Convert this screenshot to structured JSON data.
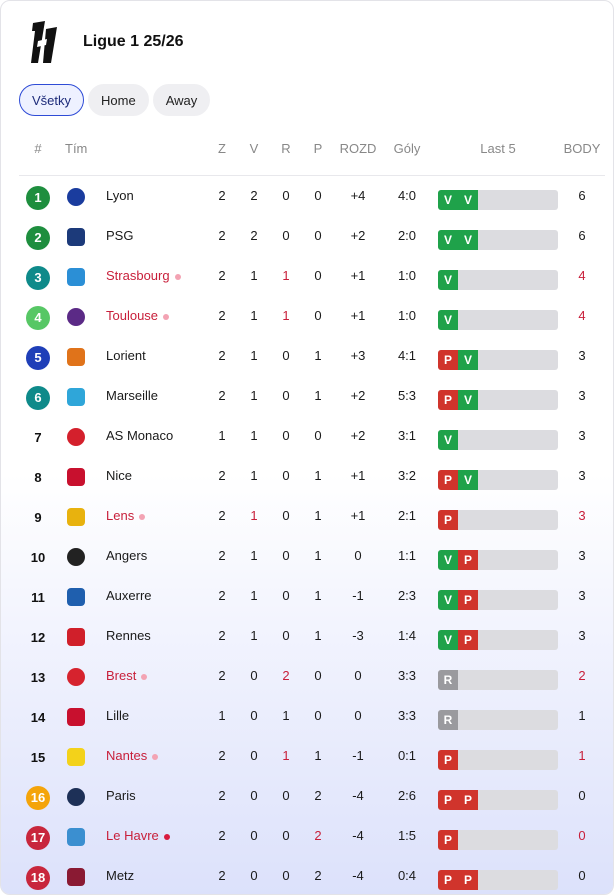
{
  "title": "Ligue 1 25/26",
  "filters": [
    {
      "label": "Všetky",
      "active": true
    },
    {
      "label": "Home",
      "active": false
    },
    {
      "label": "Away",
      "active": false
    }
  ],
  "columns": {
    "rank": "#",
    "team": "Tím",
    "z": "Z",
    "v": "V",
    "r": "R",
    "p": "P",
    "rozd": "ROZD",
    "goly": "Góly",
    "last5": "Last 5",
    "body": "BODY"
  },
  "colors": {
    "ucl": "#1e8e3e",
    "uel": "#0e8a8a",
    "conf": "#57c765",
    "ucl_playoff": "#1f3fb8",
    "playoff": "#f4a40a",
    "releg": "#c8263c",
    "win": "#1fa24a",
    "loss": "#d0342c",
    "draw": "#9a9a9e"
  },
  "rows": [
    {
      "rank": "1",
      "zone": "ucl",
      "team": "Lyon",
      "crest": "lyon-crest",
      "crest_color": "#1a3c9e",
      "note": "",
      "z": "2",
      "v": "2",
      "r": "0",
      "p": "0",
      "rozd": "+4",
      "goly": "4:0",
      "form": [
        "V",
        "V"
      ],
      "body": "6",
      "hl": ""
    },
    {
      "rank": "2",
      "zone": "ucl",
      "team": "PSG",
      "crest": "psg-crest",
      "crest_color": "#1c3a7a",
      "note": "",
      "z": "2",
      "v": "2",
      "r": "0",
      "p": "0",
      "rozd": "+2",
      "goly": "2:0",
      "form": [
        "V",
        "V"
      ],
      "body": "6",
      "hl": ""
    },
    {
      "rank": "3",
      "zone": "conf",
      "team": "Strasbourg",
      "crest": "strasbourg-crest",
      "crest_color": "#2b8fd6",
      "note": "light",
      "z": "2",
      "v": "1",
      "r": "1",
      "p": "0",
      "rozd": "+1",
      "goly": "1:0",
      "form": [
        "V"
      ],
      "body": "4",
      "hl": "r"
    },
    {
      "rank": "4",
      "zone": "conf2",
      "team": "Toulouse",
      "crest": "toulouse-crest",
      "crest_color": "#5b2a86",
      "note": "light",
      "z": "2",
      "v": "1",
      "r": "1",
      "p": "0",
      "rozd": "+1",
      "goly": "1:0",
      "form": [
        "V"
      ],
      "body": "4",
      "hl": "r"
    },
    {
      "rank": "5",
      "zone": "ucl_playoff",
      "team": "Lorient",
      "crest": "lorient-crest",
      "crest_color": "#e0731a",
      "note": "",
      "z": "2",
      "v": "1",
      "r": "0",
      "p": "1",
      "rozd": "+3",
      "goly": "4:1",
      "form": [
        "P",
        "V"
      ],
      "body": "3",
      "hl": ""
    },
    {
      "rank": "6",
      "zone": "uel",
      "team": "Marseille",
      "crest": "marseille-crest",
      "crest_color": "#2fa6d9",
      "note": "",
      "z": "2",
      "v": "1",
      "r": "0",
      "p": "1",
      "rozd": "+2",
      "goly": "5:3",
      "form": [
        "P",
        "V"
      ],
      "body": "3",
      "hl": ""
    },
    {
      "rank": "7",
      "zone": "",
      "team": "AS Monaco",
      "crest": "monaco-crest",
      "crest_color": "#d4202c",
      "note": "",
      "z": "1",
      "v": "1",
      "r": "0",
      "p": "0",
      "rozd": "+2",
      "goly": "3:1",
      "form": [
        "V"
      ],
      "body": "3",
      "hl": ""
    },
    {
      "rank": "8",
      "zone": "",
      "team": "Nice",
      "crest": "nice-crest",
      "crest_color": "#c8102e",
      "note": "",
      "z": "2",
      "v": "1",
      "r": "0",
      "p": "1",
      "rozd": "+1",
      "goly": "3:2",
      "form": [
        "P",
        "V"
      ],
      "body": "3",
      "hl": ""
    },
    {
      "rank": "9",
      "zone": "",
      "team": "Lens",
      "crest": "lens-crest",
      "crest_color": "#e8b20e",
      "note": "light",
      "z": "2",
      "v": "1",
      "r": "0",
      "p": "1",
      "rozd": "+1",
      "goly": "2:1",
      "form": [
        "P"
      ],
      "body": "3",
      "hl": "v"
    },
    {
      "rank": "10",
      "zone": "",
      "team": "Angers",
      "crest": "angers-crest",
      "crest_color": "#222222",
      "note": "",
      "z": "2",
      "v": "1",
      "r": "0",
      "p": "1",
      "rozd": "0",
      "goly": "1:1",
      "form": [
        "V",
        "P"
      ],
      "body": "3",
      "hl": ""
    },
    {
      "rank": "11",
      "zone": "",
      "team": "Auxerre",
      "crest": "auxerre-crest",
      "crest_color": "#1f5fae",
      "note": "",
      "z": "2",
      "v": "1",
      "r": "0",
      "p": "1",
      "rozd": "-1",
      "goly": "2:3",
      "form": [
        "V",
        "P"
      ],
      "body": "3",
      "hl": ""
    },
    {
      "rank": "12",
      "zone": "",
      "team": "Rennes",
      "crest": "rennes-crest",
      "crest_color": "#d01f2a",
      "note": "",
      "z": "2",
      "v": "1",
      "r": "0",
      "p": "1",
      "rozd": "-3",
      "goly": "1:4",
      "form": [
        "V",
        "P"
      ],
      "body": "3",
      "hl": ""
    },
    {
      "rank": "13",
      "zone": "",
      "team": "Brest",
      "crest": "brest-crest",
      "crest_color": "#d6232e",
      "note": "light",
      "z": "2",
      "v": "0",
      "r": "2",
      "p": "0",
      "rozd": "0",
      "goly": "3:3",
      "form": [
        "R"
      ],
      "body": "2",
      "hl": "r"
    },
    {
      "rank": "14",
      "zone": "",
      "team": "Lille",
      "crest": "lille-crest",
      "crest_color": "#c8102e",
      "note": "",
      "z": "1",
      "v": "0",
      "r": "1",
      "p": "0",
      "rozd": "0",
      "goly": "3:3",
      "form": [
        "R"
      ],
      "body": "1",
      "hl": ""
    },
    {
      "rank": "15",
      "zone": "",
      "team": "Nantes",
      "crest": "nantes-crest",
      "crest_color": "#f3d21a",
      "note": "light",
      "z": "2",
      "v": "0",
      "r": "1",
      "p": "1",
      "rozd": "-1",
      "goly": "0:1",
      "form": [
        "P"
      ],
      "body": "1",
      "hl": "r"
    },
    {
      "rank": "16",
      "zone": "playoff",
      "team": "Paris",
      "crest": "paris-fc-crest",
      "crest_color": "#1d3057",
      "note": "",
      "z": "2",
      "v": "0",
      "r": "0",
      "p": "2",
      "rozd": "-4",
      "goly": "2:6",
      "form": [
        "P",
        "P"
      ],
      "body": "0",
      "hl": ""
    },
    {
      "rank": "17",
      "zone": "releg",
      "team": "Le Havre",
      "crest": "le-havre-crest",
      "crest_color": "#3b8fd0",
      "note": "strong",
      "z": "2",
      "v": "0",
      "r": "0",
      "p": "2",
      "rozd": "-4",
      "goly": "1:5",
      "form": [
        "P"
      ],
      "body": "0",
      "hl": "p"
    },
    {
      "rank": "18",
      "zone": "releg",
      "team": "Metz",
      "crest": "metz-crest",
      "crest_color": "#8a1a33",
      "note": "",
      "z": "2",
      "v": "0",
      "r": "0",
      "p": "2",
      "rozd": "-4",
      "goly": "0:4",
      "form": [
        "P",
        "P"
      ],
      "body": "0",
      "hl": ""
    }
  ]
}
